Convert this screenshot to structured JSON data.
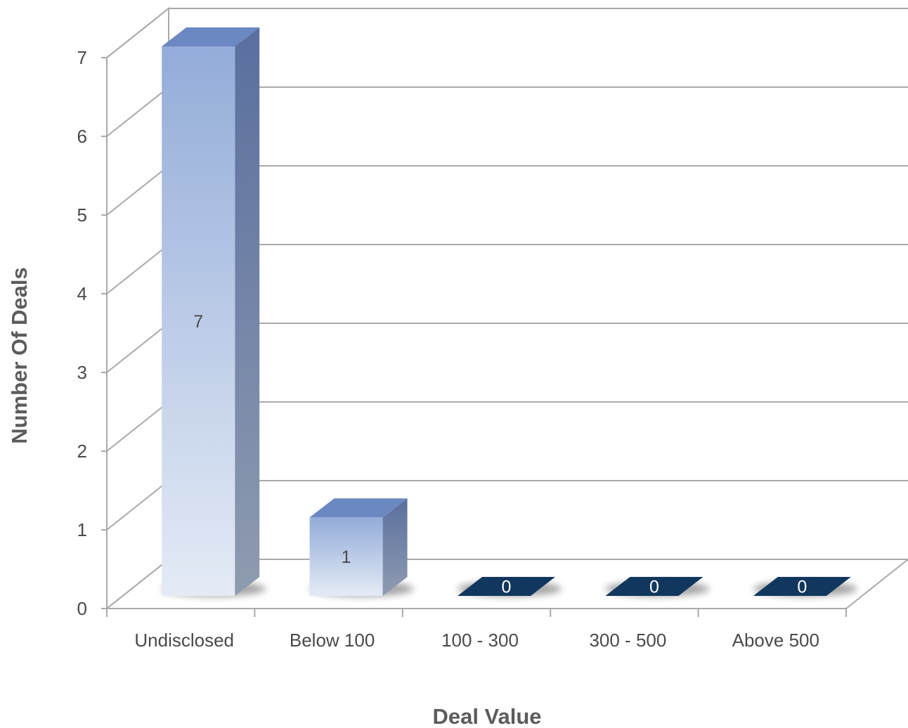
{
  "chart_data": {
    "type": "bar",
    "style": "3d-column",
    "categories": [
      "Undisclosed",
      "Below 100",
      "100 - 300",
      "300 - 500",
      "Above 500"
    ],
    "values": [
      7,
      1,
      0,
      0,
      0
    ],
    "data_labels": [
      "7",
      "1",
      "0",
      "0",
      "0"
    ],
    "title": "",
    "xlabel": "Deal Value",
    "ylabel": "Number Of Deals",
    "ylim": [
      0,
      7
    ],
    "yticks": [
      0,
      1,
      2,
      3,
      4,
      5,
      6,
      7
    ],
    "grid": true,
    "legend": "none",
    "colors": {
      "bar_front_top": "#93acd9",
      "bar_front_bottom": "#e4ebf6",
      "bar_side_top": "#5a6f9f",
      "bar_side_bottom": "#8f9bb0",
      "bar_top": "#6b88c2",
      "zero_bar": "#12375e",
      "gridline": "#a9a9a9",
      "text": "#4a4a4a"
    }
  }
}
